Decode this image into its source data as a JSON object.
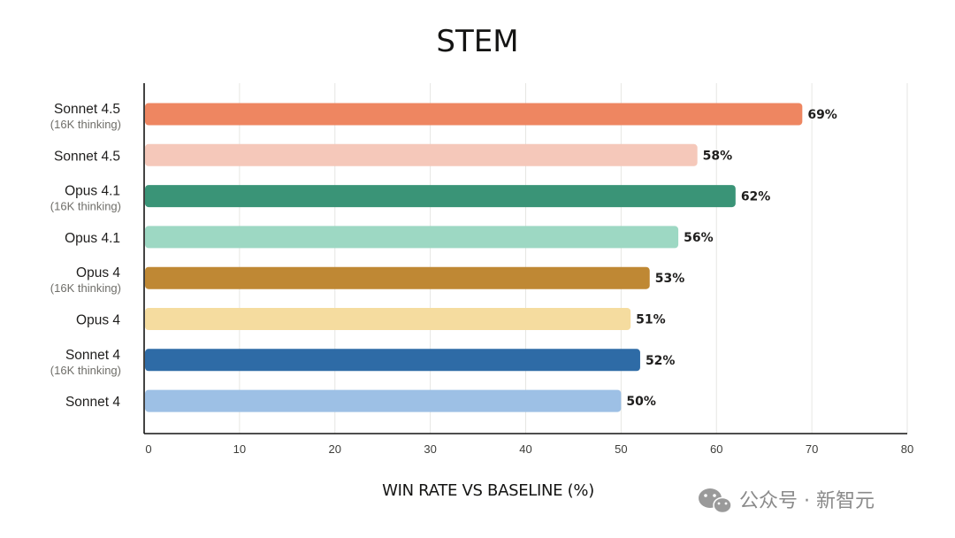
{
  "chart_data": {
    "type": "bar",
    "orientation": "horizontal",
    "title": "STEM",
    "xlabel": "WIN RATE VS BASELINE (%)",
    "ylabel": "",
    "xlim": [
      0,
      80
    ],
    "xticks": [
      0,
      10,
      20,
      30,
      40,
      50,
      60,
      70,
      80
    ],
    "grid": true,
    "value_suffix": "%",
    "categories": [
      {
        "name": "Sonnet 4.5",
        "sub": "(16K thinking)",
        "value": 69,
        "color": "#EE8661"
      },
      {
        "name": "Sonnet 4.5",
        "sub": "",
        "value": 58,
        "color": "#F5C8BA"
      },
      {
        "name": "Opus 4.1",
        "sub": "(16K thinking)",
        "value": 62,
        "color": "#3A9477"
      },
      {
        "name": "Opus 4.1",
        "sub": "",
        "value": 56,
        "color": "#9DD8C3"
      },
      {
        "name": "Opus 4",
        "sub": "(16K thinking)",
        "value": 53,
        "color": "#BF8834"
      },
      {
        "name": "Opus 4",
        "sub": "",
        "value": 51,
        "color": "#F5DC9F"
      },
      {
        "name": "Sonnet 4",
        "sub": "(16K thinking)",
        "value": 52,
        "color": "#2E6BA6"
      },
      {
        "name": "Sonnet 4",
        "sub": "",
        "value": 50,
        "color": "#9DC0E5"
      }
    ]
  },
  "watermark": {
    "text": "公众号 · 新智元",
    "icon": "wechat-icon"
  }
}
